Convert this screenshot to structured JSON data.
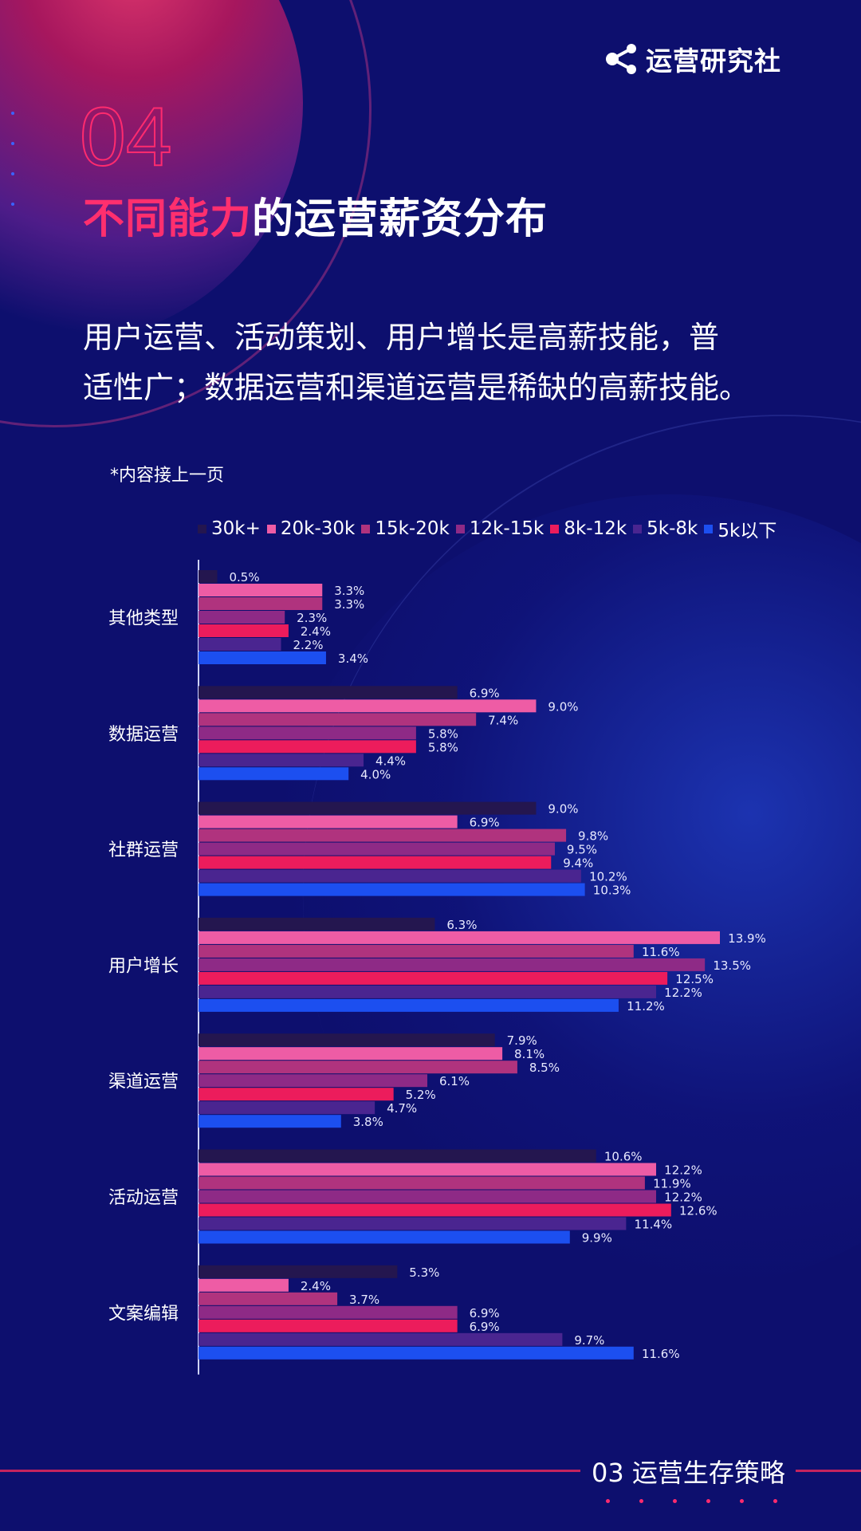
{
  "brand": {
    "name": "运营研究社"
  },
  "header": {
    "section_number": "04",
    "title_accent": "不同能力",
    "title_rest": "的运营薪资分布"
  },
  "summary": {
    "line1": "用户运营、活动策划、用户增长是高薪技能，普",
    "line2": "适性广；数据运营和渠道运营是稀缺的高薪技能。"
  },
  "note": "*内容接上一页",
  "footer": {
    "label": "03 运营生存策略"
  },
  "colors": {
    "background": "#0d0f6e",
    "accent": "#ff2f6e"
  },
  "chart_data": {
    "type": "bar",
    "orientation": "horizontal",
    "categories": [
      "其他类型",
      "数据运营",
      "社群运营",
      "用户增长",
      "渠道运营",
      "活动运营",
      "文案编辑"
    ],
    "series": [
      {
        "name": "30k+",
        "color": "#24164f",
        "values": [
          0.5,
          6.9,
          9.0,
          6.3,
          7.9,
          10.6,
          5.3
        ]
      },
      {
        "name": "20k-30k",
        "color": "#ee5ca5",
        "values": [
          3.3,
          9.0,
          6.9,
          13.9,
          8.1,
          12.2,
          2.4
        ]
      },
      {
        "name": "15k-20k",
        "color": "#b0337e",
        "values": [
          3.3,
          7.4,
          9.8,
          11.6,
          8.5,
          11.9,
          3.7
        ]
      },
      {
        "name": "12k-15k",
        "color": "#8e2a86",
        "values": [
          2.3,
          5.8,
          9.5,
          13.5,
          6.1,
          12.2,
          6.9
        ]
      },
      {
        "name": "8k-12k",
        "color": "#ec1c5c",
        "values": [
          2.4,
          5.8,
          9.4,
          12.5,
          5.2,
          12.6,
          6.9
        ]
      },
      {
        "name": "5k-8k",
        "color": "#4a2590",
        "values": [
          2.2,
          4.4,
          10.2,
          12.2,
          4.7,
          11.4,
          9.7
        ]
      },
      {
        "name": "5k以下",
        "color": "#1c4ff0",
        "values": [
          3.4,
          4.0,
          10.3,
          11.2,
          3.8,
          9.9,
          11.6
        ]
      }
    ],
    "value_format": "percent_1dp",
    "xlim": [
      0,
      13.9
    ],
    "legend_position": "top",
    "grid": false
  }
}
